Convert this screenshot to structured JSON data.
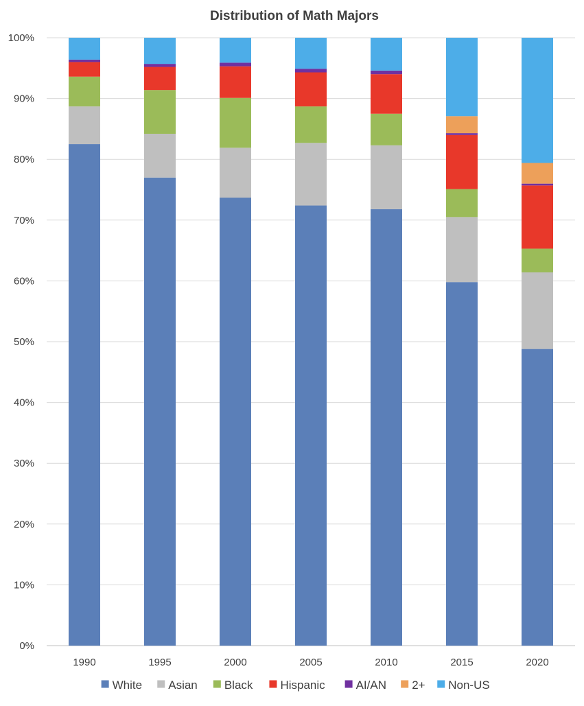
{
  "chart_data": {
    "type": "bar",
    "stacked": true,
    "title": "Distribution of Math Majors",
    "xlabel": "",
    "ylabel": "",
    "ylim": [
      0,
      100
    ],
    "y_ticks": [
      "0%",
      "10%",
      "20%",
      "30%",
      "40%",
      "50%",
      "60%",
      "70%",
      "80%",
      "90%",
      "100%"
    ],
    "grid": "horizontal",
    "legend_position": "bottom",
    "categories": [
      "1990",
      "1995",
      "2000",
      "2005",
      "2010",
      "2015",
      "2020"
    ],
    "series": [
      {
        "name": "White",
        "color": "#5b7fb8",
        "values": [
          82.5,
          77.0,
          73.7,
          72.4,
          71.8,
          59.8,
          48.8
        ]
      },
      {
        "name": "Asian",
        "color": "#bfbfbf",
        "values": [
          6.2,
          7.2,
          8.2,
          10.3,
          10.5,
          10.7,
          12.6
        ]
      },
      {
        "name": "Black",
        "color": "#9bbb59",
        "values": [
          4.9,
          7.2,
          8.2,
          6.0,
          5.2,
          4.6,
          3.9
        ]
      },
      {
        "name": "Hispanic",
        "color": "#e8382a",
        "values": [
          2.4,
          3.8,
          5.2,
          5.6,
          6.5,
          8.9,
          10.4
        ]
      },
      {
        "name": "AI/AN",
        "color": "#7030a0",
        "values": [
          0.4,
          0.5,
          0.6,
          0.6,
          0.6,
          0.3,
          0.3
        ]
      },
      {
        "name": "2+",
        "color": "#eda05a",
        "values": [
          0.0,
          0.0,
          0.0,
          0.0,
          0.0,
          2.8,
          3.4
        ]
      },
      {
        "name": "Non-US",
        "color": "#4dade8",
        "values": [
          3.6,
          4.3,
          4.1,
          5.1,
          5.4,
          12.9,
          20.6
        ]
      }
    ]
  }
}
